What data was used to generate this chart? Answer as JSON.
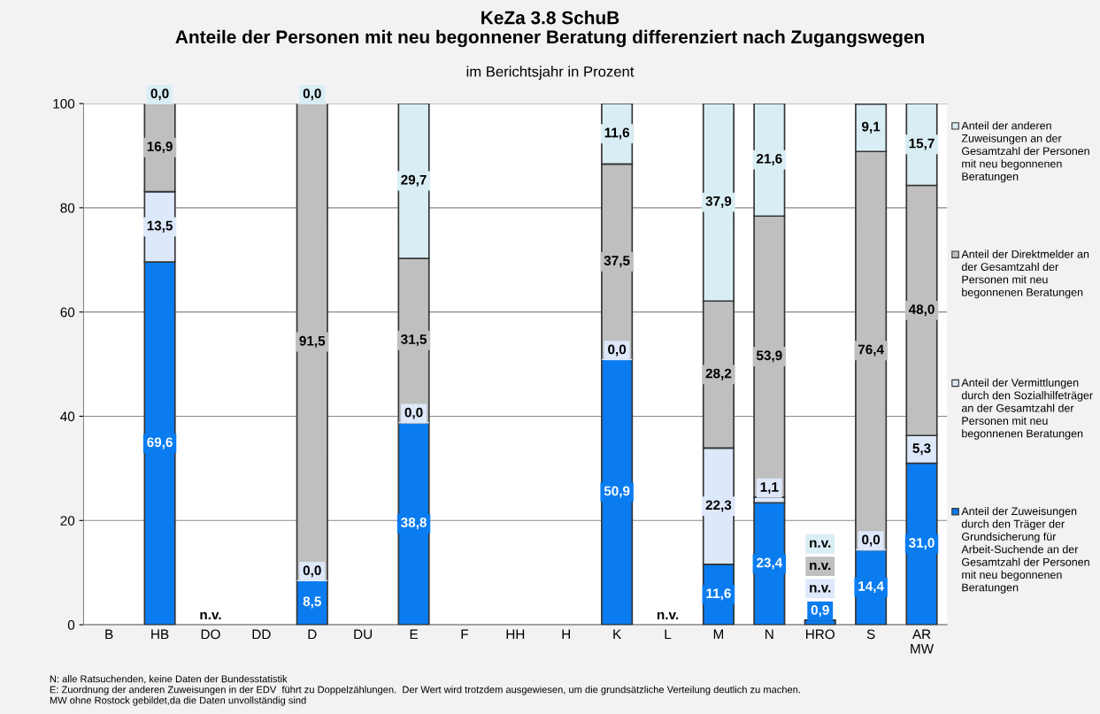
{
  "chart_data": {
    "type": "bar",
    "stacked": true,
    "title": "KeZa 3.8 SchuB\nAnteile der Personen mit neu begonnener Beratung differenziert nach Zugangswegen",
    "subtitle": "im Berichtsjahr in Prozent",
    "categories": [
      "B",
      "HB",
      "DO",
      "DD",
      "D",
      "DU",
      "E",
      "F",
      "HH",
      "H",
      "K",
      "L",
      "M",
      "N",
      "HRO",
      "S",
      "AR\nMW"
    ],
    "series": [
      {
        "name": "Anteil der Zuweisungen durch den Träger der Grundsicherung für Arbeit-Suchende an der Gesamtzahl der Personen mit neu begonnenen Beratungen",
        "color": "#0a7cf0",
        "values": [
          null,
          69.6,
          null,
          null,
          8.5,
          null,
          38.8,
          null,
          null,
          null,
          50.9,
          null,
          11.6,
          23.4,
          0.9,
          14.4,
          31.0
        ],
        "value_labels": [
          null,
          "69,6",
          "n.v.",
          null,
          "8,5",
          null,
          "38,8",
          null,
          null,
          null,
          "50,9",
          "n.v.",
          "11,6",
          "23,4",
          "0,9",
          "14,4",
          "31,0"
        ]
      },
      {
        "name": "Anteil der Vermittlungen durch den Sozialhilfeträger an der Gesamtzahl der Personen mit neu begonnenen Beratungen",
        "color": "#dde8fb",
        "values": [
          null,
          13.5,
          null,
          null,
          0.0,
          null,
          0.0,
          null,
          null,
          null,
          0.0,
          null,
          22.3,
          1.1,
          null,
          0.0,
          5.3
        ],
        "value_labels": [
          null,
          "13,5",
          null,
          null,
          "0,0",
          null,
          "0,0",
          null,
          null,
          null,
          "0,0",
          null,
          "22,3",
          "1,1",
          "n.v.",
          "0,0",
          "5,3"
        ]
      },
      {
        "name": "Anteil der Direktmelder an der Gesamtzahl der Personen mit neu begonnenen Beratungen",
        "color": "#bfbfbf",
        "values": [
          null,
          16.9,
          null,
          null,
          91.5,
          null,
          31.5,
          null,
          null,
          null,
          37.5,
          null,
          28.2,
          53.9,
          null,
          76.4,
          48.0
        ],
        "value_labels": [
          null,
          "16,9",
          null,
          null,
          "91,5",
          null,
          "31,5",
          null,
          null,
          null,
          "37,5",
          null,
          "28,2",
          "53,9",
          "n.v.",
          "76,4",
          "48,0"
        ]
      },
      {
        "name": "Anteil der anderen Zuweisungen an der Gesamtzahl der Personen mit neu begonnenen Beratungen",
        "color": "#d9eef4",
        "values": [
          null,
          0.0,
          null,
          null,
          0.0,
          null,
          29.7,
          null,
          null,
          null,
          11.6,
          null,
          37.9,
          21.6,
          null,
          9.1,
          15.7
        ],
        "value_labels": [
          null,
          "0,0",
          null,
          null,
          "0,0",
          null,
          "29,7",
          null,
          null,
          null,
          "11,6",
          null,
          "37,9",
          "21,6",
          "n.v.",
          "9,1",
          "15,7"
        ]
      }
    ],
    "ylim": [
      0,
      100
    ],
    "yticks": [
      0,
      20,
      40,
      60,
      80,
      100
    ],
    "grid": "y",
    "legend": "right",
    "annotations": [
      "N: alle Ratsuchenden, keine Daten der Bundesstatistik",
      "E: Zuordnung der anderen Zuweisungen in der EDV  führt zu Doppelzählungen.  Der Wert wird trotzdem ausgewiesen, um die grundsätzliche Verteilung deutlich zu machen.",
      "MW ohne Rostock gebildet,da die Daten unvollständig sind"
    ]
  }
}
